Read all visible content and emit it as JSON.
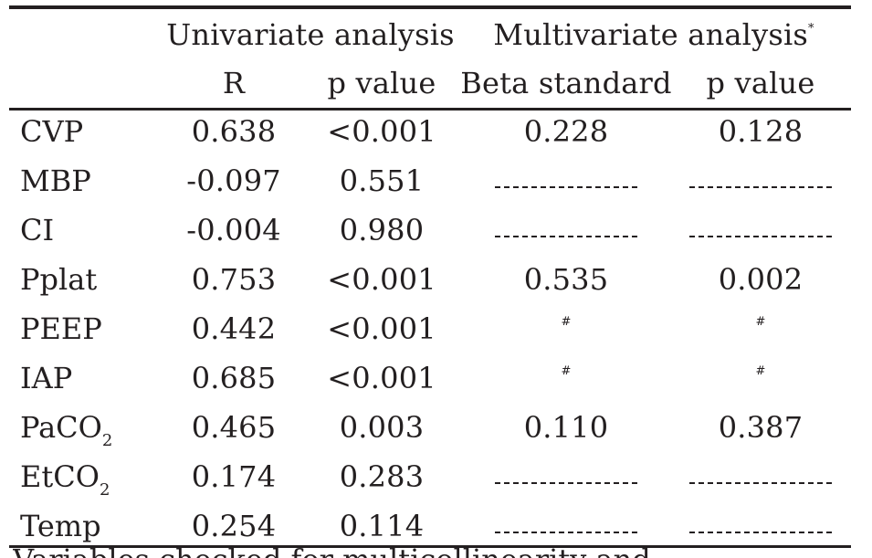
{
  "table": {
    "header": {
      "group_univariate": "Univariate analysis",
      "group_multivariate": "Multivariate analysis",
      "group_multivariate_mark": "*",
      "col_r": "R",
      "col_p_uni": "p value",
      "col_beta": "Beta standard",
      "col_p_multi": "p value"
    },
    "rows": [
      {
        "label": "CVP",
        "label_sub": "",
        "r": "0.638",
        "p": "<0.001",
        "beta": "0.228",
        "p_multi": "0.128"
      },
      {
        "label": "MBP",
        "label_sub": "",
        "r": "-0.097",
        "p": "0.551",
        "beta": "",
        "p_multi": ""
      },
      {
        "label": "CI",
        "label_sub": "",
        "r": "-0.004",
        "p": "0.980",
        "beta": "",
        "p_multi": ""
      },
      {
        "label": "Pplat",
        "label_sub": "",
        "r": "0.753",
        "p": "<0.001",
        "beta": "0.535",
        "p_multi": "0.002"
      },
      {
        "label": "PEEP",
        "label_sub": "",
        "r": "0.442",
        "p": "<0.001",
        "beta": "#",
        "p_multi": "#"
      },
      {
        "label": "IAP",
        "label_sub": "",
        "r": "0.685",
        "p": "<0.001",
        "beta": "#",
        "p_multi": "#"
      },
      {
        "label": "PaCO",
        "label_sub": "2",
        "r": "0.465",
        "p": "0.003",
        "beta": "0.110",
        "p_multi": "0.387"
      },
      {
        "label": "EtCO",
        "label_sub": "2",
        "r": "0.174",
        "p": "0.283",
        "beta": "",
        "p_multi": ""
      },
      {
        "label": "Temp",
        "label_sub": "",
        "r": "0.254",
        "p": "0.114",
        "beta": "",
        "p_multi": ""
      }
    ],
    "footer_fragment": "Variables checked for multicollinearity and"
  }
}
